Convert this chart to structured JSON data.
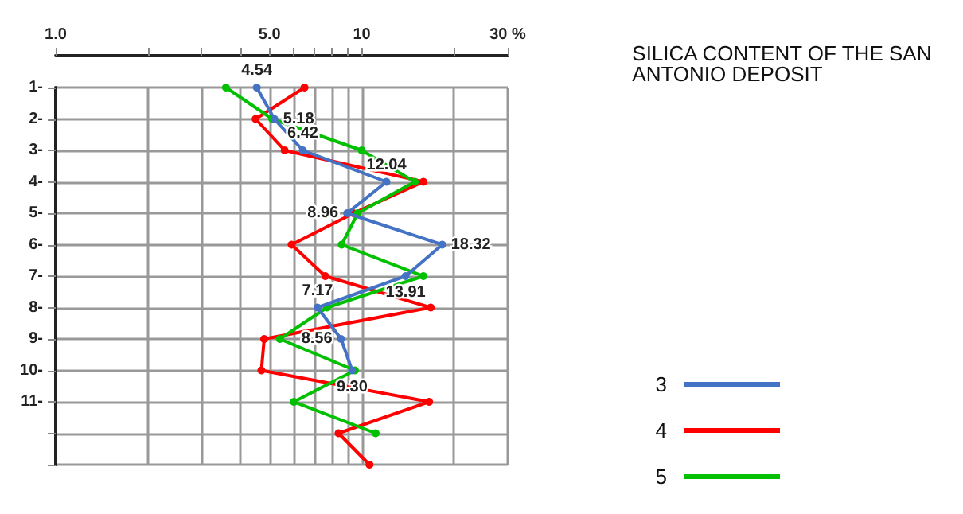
{
  "chart_data": {
    "type": "line",
    "title": "SILICA CONTENT OF THE SAN ANTONIO DEPOSIT",
    "orientation": "horizontal",
    "log": "x",
    "grid": true,
    "legend": "right",
    "marker": "circle",
    "line_style": "solid",
    "categories": [
      "1-",
      "2-",
      "3-",
      "4-",
      "5-",
      "6-",
      "7-",
      "8-",
      "9-",
      "10-",
      "11-",
      null,
      null
    ],
    "xlim": [
      1,
      30
    ],
    "xticks": [
      {
        "value": 1,
        "label": "1.0"
      },
      {
        "value": 2,
        "label": null
      },
      {
        "value": 3,
        "label": null
      },
      {
        "value": 4,
        "label": null
      },
      {
        "value": 5,
        "label": "5.0"
      },
      {
        "value": 6,
        "label": null
      },
      {
        "value": 7,
        "label": null
      },
      {
        "value": 8,
        "label": null
      },
      {
        "value": 9,
        "label": null
      },
      {
        "value": 10,
        "label": "10"
      },
      {
        "value": 20,
        "label": null
      },
      {
        "value": 30,
        "label": "30 %"
      }
    ],
    "series": [
      {
        "name": "3",
        "color": "#4472c4",
        "values": [
          4.54,
          5.18,
          6.42,
          12.04,
          8.96,
          18.32,
          13.91,
          7.17,
          8.56,
          9.3,
          null,
          null,
          null
        ],
        "value_labels": [
          "4.54",
          "5.18",
          "6.42",
          "12.04",
          "8.96",
          "18.32",
          "13.91",
          "7.17",
          "8.56",
          "9.30",
          null,
          null,
          null
        ]
      },
      {
        "name": "4",
        "color": "#ff0000",
        "values": [
          6.5,
          4.5,
          5.6,
          15.9,
          9.4,
          5.9,
          7.6,
          16.8,
          4.8,
          4.7,
          16.6,
          8.4,
          10.6
        ]
      },
      {
        "name": "5",
        "color": "#00c000",
        "values": [
          3.6,
          5.1,
          10.0,
          14.9,
          9.7,
          8.6,
          15.9,
          7.7,
          5.4,
          9.5,
          6.0,
          11.1,
          null
        ]
      }
    ]
  }
}
